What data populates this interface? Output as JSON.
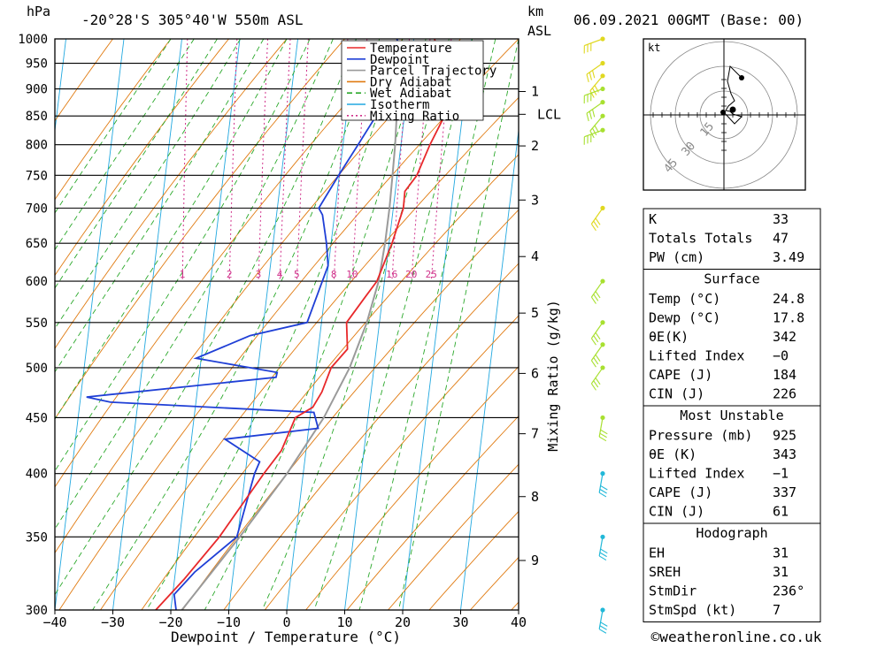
{
  "header": {
    "hpa": "hPa",
    "location": "-20°28'S  305°40'W  550m  ASL",
    "km": "km",
    "asl": "ASL",
    "datetime": "06.09.2021  00GMT  (Base: 00)"
  },
  "chart_data": {
    "type": "line",
    "title": "-20°28'S  305°40'W  550m  ASL",
    "xlabel": "Dewpoint / Temperature (°C)",
    "ylabel": "hPa",
    "y2label": "Mixing Ratio (g/kg)",
    "x_ticks": [
      "−40",
      "−30",
      "−20",
      "−10",
      "0",
      "10",
      "20",
      "30",
      "40"
    ],
    "x_tick_values": [
      -40,
      -30,
      -20,
      -10,
      0,
      10,
      20,
      30,
      40
    ],
    "pressure_ticks": [
      300,
      350,
      400,
      450,
      500,
      550,
      600,
      650,
      700,
      750,
      800,
      850,
      900,
      950,
      1000
    ],
    "km_ticks": [
      {
        "label": "1",
        "p": 895
      },
      {
        "label": "2",
        "p": 798
      },
      {
        "label": "3",
        "p": 712
      },
      {
        "label": "4",
        "p": 632
      },
      {
        "label": "5",
        "p": 561
      },
      {
        "label": "6",
        "p": 494
      },
      {
        "label": "7",
        "p": 435
      },
      {
        "label": "8",
        "p": 381
      },
      {
        "label": "9",
        "p": 333
      }
    ],
    "lcl": {
      "label": "LCL",
      "p": 853
    },
    "mixing_ratio_labels": [
      "1",
      "2",
      "3",
      "4",
      "5",
      "8",
      "10",
      "16",
      "20",
      "25"
    ],
    "mixing_ratio_values": [
      1,
      2,
      3,
      4,
      5,
      8,
      10,
      16,
      20,
      25
    ],
    "legend": [
      {
        "name": "Temperature",
        "color": "#e8282a",
        "dash": "none"
      },
      {
        "name": "Dewpoint",
        "color": "#1f3fd6",
        "dash": "none"
      },
      {
        "name": "Parcel Trajectory",
        "color": "#9a9a9a",
        "dash": "none"
      },
      {
        "name": "Dry Adiabat",
        "color": "#e07a10",
        "dash": "none"
      },
      {
        "name": "Wet Adiabat",
        "color": "#2aa82a",
        "dash": "6,4"
      },
      {
        "name": "Isotherm",
        "color": "#22a8e0",
        "dash": "none"
      },
      {
        "name": "Mixing Ratio",
        "color": "#d0308a",
        "dash": "2,3"
      }
    ],
    "series": [
      {
        "name": "Temperature",
        "color": "#e8282a",
        "points": [
          [
            1000,
            25.5
          ],
          [
            950,
            26.2
          ],
          [
            945,
            30.5
          ],
          [
            930,
            31.0
          ],
          [
            900,
            28.7
          ],
          [
            850,
            25.6
          ],
          [
            800,
            22.5
          ],
          [
            750,
            19.6
          ],
          [
            725,
            17.2
          ],
          [
            700,
            16.6
          ],
          [
            650,
            13.9
          ],
          [
            600,
            10.5
          ],
          [
            580,
            8.1
          ],
          [
            550,
            4.4
          ],
          [
            520,
            4.0
          ],
          [
            500,
            0.8
          ],
          [
            475,
            -1.3
          ],
          [
            460,
            -3.2
          ],
          [
            450,
            -6.4
          ],
          [
            420,
            -9.5
          ],
          [
            400,
            -13.0
          ],
          [
            350,
            -22.0
          ],
          [
            320,
            -29.0
          ],
          [
            300,
            -34.5
          ]
        ]
      },
      {
        "name": "Dewpoint",
        "color": "#1f3fd6",
        "points": [
          [
            1000,
            19.0
          ],
          [
            955,
            20.0
          ],
          [
            948,
            17.8
          ],
          [
            930,
            17.0
          ],
          [
            900,
            14.7
          ],
          [
            850,
            13.8
          ],
          [
            800,
            10.1
          ],
          [
            750,
            6.1
          ],
          [
            700,
            2.0
          ],
          [
            690,
            2.5
          ],
          [
            650,
            2.6
          ],
          [
            620,
            2.4
          ],
          [
            550,
            -2.4
          ],
          [
            535,
            -12.5
          ],
          [
            510,
            -22.3
          ],
          [
            495,
            -8.6
          ],
          [
            490,
            -8.9
          ],
          [
            470,
            -42.0
          ],
          [
            465,
            -38.0
          ],
          [
            455,
            -3.1
          ],
          [
            440,
            -2.7
          ],
          [
            430,
            -19.0
          ],
          [
            410,
            -13.5
          ],
          [
            400,
            -14.6
          ],
          [
            350,
            -19.0
          ],
          [
            325,
            -27.0
          ],
          [
            310,
            -31.0
          ],
          [
            300,
            -31.0
          ]
        ]
      },
      {
        "name": "Parcel Trajectory",
        "color": "#9a9a9a",
        "points": [
          [
            950,
            25.5
          ],
          [
            900,
            21.0
          ],
          [
            853,
            17.4
          ],
          [
            800,
            16.5
          ],
          [
            750,
            15.4
          ],
          [
            700,
            14.2
          ],
          [
            650,
            12.7
          ],
          [
            600,
            10.8
          ],
          [
            550,
            7.9
          ],
          [
            500,
            4.0
          ],
          [
            450,
            -1.5
          ],
          [
            400,
            -9.0
          ],
          [
            350,
            -18.5
          ],
          [
            300,
            -30.0
          ]
        ]
      }
    ],
    "wind_barbs": [
      {
        "p": 1000,
        "color": "#e0d820"
      },
      {
        "p": 950,
        "color": "#e0d820"
      },
      {
        "p": 925,
        "color": "#e0d820"
      },
      {
        "p": 900,
        "color": "#a8e030"
      },
      {
        "p": 875,
        "color": "#a8e030"
      },
      {
        "p": 850,
        "color": "#a8e030"
      },
      {
        "p": 825,
        "color": "#a8e030"
      },
      {
        "p": 700,
        "color": "#e0d820"
      },
      {
        "p": 600,
        "color": "#a8e030"
      },
      {
        "p": 550,
        "color": "#a8e030"
      },
      {
        "p": 525,
        "color": "#a8e030"
      },
      {
        "p": 500,
        "color": "#a8e030"
      },
      {
        "p": 450,
        "color": "#a8e030"
      },
      {
        "p": 400,
        "color": "#22b8d8"
      },
      {
        "p": 350,
        "color": "#22b8d8"
      },
      {
        "p": 300,
        "color": "#22b8d8"
      }
    ]
  },
  "hodograph": {
    "unit": "kt",
    "ring_labels": [
      "15",
      "30",
      "45"
    ]
  },
  "table1": [
    {
      "label": "K",
      "value": "33"
    },
    {
      "label": "Totals Totals",
      "value": "47"
    },
    {
      "label": "PW (cm)",
      "value": "3.49"
    }
  ],
  "surface": {
    "title": "Surface",
    "rows": [
      {
        "label": "Temp (°C)",
        "value": "24.8"
      },
      {
        "label": "Dewp (°C)",
        "value": "17.8"
      },
      {
        "label": "θE(K)",
        "value": "342"
      },
      {
        "label": "Lifted Index",
        "value": "−0"
      },
      {
        "label": "CAPE (J)",
        "value": "184"
      },
      {
        "label": "CIN (J)",
        "value": "226"
      }
    ]
  },
  "most_unstable": {
    "title": "Most Unstable",
    "rows": [
      {
        "label": "Pressure (mb)",
        "value": "925"
      },
      {
        "label": "θE (K)",
        "value": "343"
      },
      {
        "label": "Lifted Index",
        "value": "−1"
      },
      {
        "label": "CAPE (J)",
        "value": "337"
      },
      {
        "label": "CIN (J)",
        "value": "61"
      }
    ]
  },
  "hodograph_table": {
    "title": "Hodograph",
    "rows": [
      {
        "label": "EH",
        "value": "31"
      },
      {
        "label": "SREH",
        "value": "31"
      },
      {
        "label": "StmDir",
        "value": "236°"
      },
      {
        "label": "StmSpd (kt)",
        "value": "7"
      }
    ]
  },
  "footer": {
    "copyright": "©weatheronline.co.uk"
  }
}
